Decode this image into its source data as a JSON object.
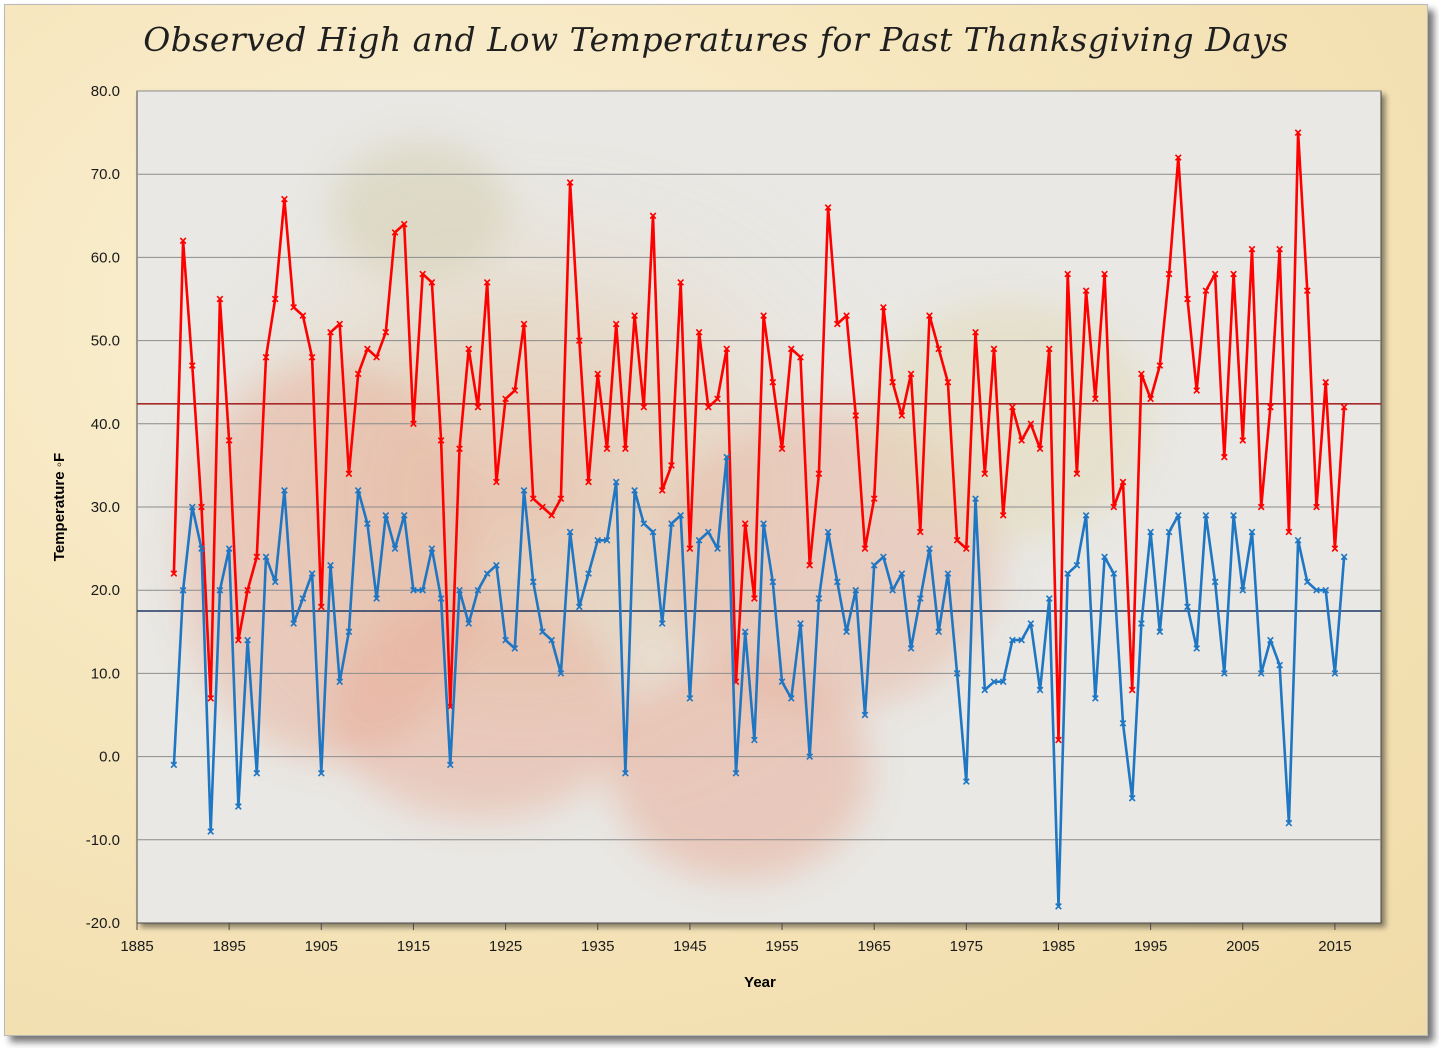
{
  "chart_data": {
    "type": "line",
    "title": "Observed High and Low Temperatures for Past Thanksgiving Days",
    "xlabel": "Year",
    "ylabel": "Temperature ◦F",
    "xlim": [
      1885,
      2020
    ],
    "ylim": [
      -20,
      80
    ],
    "x_ticks": [
      1885,
      1895,
      1905,
      1915,
      1925,
      1935,
      1945,
      1955,
      1965,
      1975,
      1985,
      1995,
      2005,
      2015
    ],
    "y_ticks": [
      -20,
      -10,
      0,
      10,
      20,
      30,
      40,
      50,
      60,
      70,
      80
    ],
    "y_tick_decimals": 1,
    "grid": "horizontal",
    "legend": "none",
    "reference_lines": [
      {
        "value": 42.4,
        "color": "#a52a2a"
      },
      {
        "value": 17.5,
        "color": "#1f3864"
      }
    ],
    "x": [
      1889,
      1890,
      1891,
      1892,
      1893,
      1894,
      1895,
      1896,
      1897,
      1898,
      1899,
      1900,
      1901,
      1902,
      1903,
      1904,
      1905,
      1906,
      1907,
      1908,
      1909,
      1910,
      1911,
      1912,
      1913,
      1914,
      1915,
      1916,
      1917,
      1918,
      1919,
      1920,
      1921,
      1922,
      1923,
      1924,
      1925,
      1926,
      1927,
      1928,
      1929,
      1930,
      1931,
      1932,
      1933,
      1934,
      1935,
      1936,
      1937,
      1938,
      1939,
      1940,
      1941,
      1942,
      1943,
      1944,
      1945,
      1946,
      1947,
      1948,
      1949,
      1950,
      1951,
      1952,
      1953,
      1954,
      1955,
      1956,
      1957,
      1958,
      1959,
      1960,
      1961,
      1962,
      1963,
      1964,
      1965,
      1966,
      1967,
      1968,
      1969,
      1970,
      1971,
      1972,
      1973,
      1974,
      1975,
      1976,
      1977,
      1978,
      1979,
      1980,
      1981,
      1982,
      1983,
      1984,
      1985,
      1986,
      1987,
      1988,
      1989,
      1990,
      1991,
      1992,
      1993,
      1994,
      1995,
      1996,
      1997,
      1998,
      1999,
      2000,
      2001,
      2002,
      2003,
      2004,
      2005,
      2006,
      2007,
      2008,
      2009,
      2010,
      2011,
      2012,
      2013,
      2014,
      2015,
      2016
    ],
    "series": [
      {
        "color": "#ff0000",
        "values": [
          22,
          62,
          47,
          30,
          7,
          55,
          38,
          14,
          20,
          24,
          48,
          55,
          67,
          54,
          53,
          48,
          18,
          51,
          52,
          34,
          46,
          49,
          48,
          51,
          63,
          64,
          40,
          58,
          57,
          38,
          6,
          37,
          49,
          42,
          57,
          33,
          43,
          44,
          52,
          31,
          30,
          29,
          31,
          69,
          50,
          33,
          46,
          37,
          52,
          37,
          53,
          42,
          65,
          32,
          35,
          57,
          25,
          51,
          42,
          43,
          49,
          9,
          28,
          19,
          53,
          45,
          37,
          49,
          48,
          23,
          34,
          66,
          52,
          53,
          41,
          25,
          31,
          54,
          45,
          41,
          46,
          27,
          53,
          49,
          45,
          26,
          25,
          51,
          34,
          49,
          29,
          42,
          38,
          40,
          37,
          49,
          2,
          58,
          34,
          56,
          43,
          58,
          30,
          33,
          8,
          46,
          43,
          47,
          58,
          72,
          55,
          44,
          56,
          58,
          36,
          58,
          38,
          61,
          30,
          42,
          61,
          27,
          75,
          56,
          30,
          45,
          25,
          42
        ]
      },
      {
        "color": "#1f77c4",
        "values": [
          -1,
          20,
          30,
          25,
          -9,
          20,
          25,
          -6,
          14,
          -2,
          24,
          21,
          32,
          16,
          19,
          22,
          -2,
          23,
          9,
          15,
          32,
          28,
          19,
          29,
          25,
          29,
          20,
          20,
          25,
          19,
          -1,
          20,
          16,
          20,
          22,
          23,
          14,
          13,
          32,
          21,
          15,
          14,
          10,
          27,
          18,
          22,
          26,
          26,
          33,
          -2,
          32,
          28,
          27,
          16,
          28,
          29,
          7,
          26,
          27,
          25,
          36,
          -2,
          15,
          2,
          28,
          21,
          9,
          7,
          16,
          0,
          19,
          27,
          21,
          15,
          20,
          5,
          23,
          24,
          20,
          22,
          13,
          19,
          25,
          15,
          22,
          10,
          -3,
          31,
          8,
          9,
          9,
          14,
          14,
          16,
          8,
          19,
          -18,
          22,
          23,
          29,
          7,
          24,
          22,
          4,
          -5,
          16,
          27,
          15,
          27,
          29,
          18,
          13,
          29,
          21,
          10,
          29,
          20,
          27,
          10,
          14,
          11,
          -8,
          26,
          21,
          20,
          20,
          10,
          24
        ]
      }
    ]
  }
}
